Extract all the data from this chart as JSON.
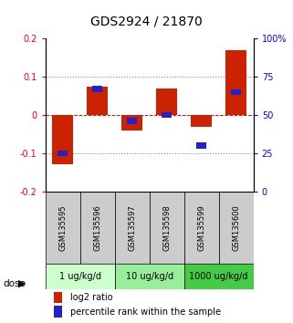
{
  "title": "GDS2924 / 21870",
  "samples": [
    "GSM135595",
    "GSM135596",
    "GSM135597",
    "GSM135598",
    "GSM135599",
    "GSM135600"
  ],
  "log2_ratios": [
    -0.13,
    0.075,
    -0.04,
    0.07,
    -0.03,
    0.17
  ],
  "percentile_ranks": [
    25,
    67,
    46,
    50,
    30,
    65
  ],
  "bar_color_red": "#cc2200",
  "bar_color_blue": "#2222cc",
  "bar_width": 0.6,
  "blue_bar_width": 0.3,
  "ylim_left": [
    -0.2,
    0.2
  ],
  "ylim_right": [
    0,
    100
  ],
  "yticks_left": [
    -0.2,
    -0.1,
    0.0,
    0.1,
    0.2
  ],
  "yticks_right": [
    0,
    25,
    50,
    75,
    100
  ],
  "ytick_labels_right": [
    "0",
    "25",
    "50",
    "75",
    "100%"
  ],
  "dose_groups": [
    {
      "label": "1 ug/kg/d",
      "color": "#ccffcc"
    },
    {
      "label": "10 ug/kg/d",
      "color": "#99ee99"
    },
    {
      "label": "1000 ug/kg/d",
      "color": "#44cc44"
    }
  ],
  "dose_label": "dose",
  "legend_red": "log2 ratio",
  "legend_blue": "percentile rank within the sample",
  "hline_zero_color": "#dd0000",
  "hline_dotted_color": "#888888",
  "sample_box_color": "#cccccc",
  "title_fontsize": 10,
  "tick_fontsize": 7,
  "label_fontsize": 6,
  "dose_fontsize": 7,
  "legend_fontsize": 7
}
